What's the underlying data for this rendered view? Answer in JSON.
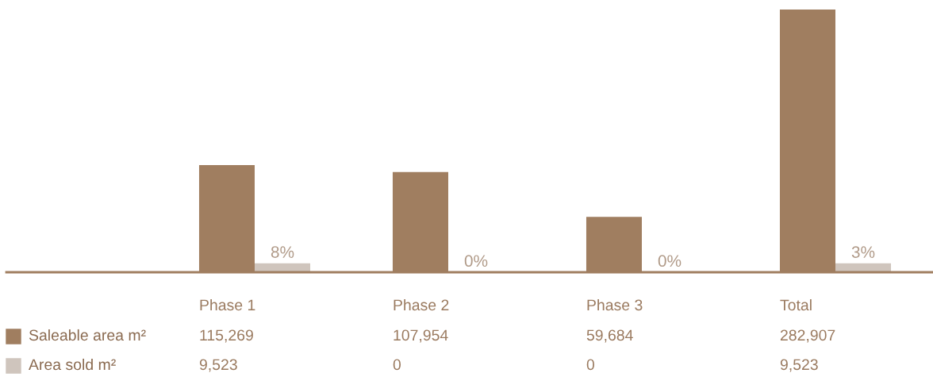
{
  "chart_data": {
    "type": "bar",
    "categories": [
      "Phase 1",
      "Phase 2",
      "Phase 3",
      "Total"
    ],
    "legend": "bottom left",
    "series": [
      {
        "name": "Saleable area m²",
        "color": "#a07e60",
        "values": [
          115269,
          107954,
          59684,
          282907
        ],
        "value_labels": [
          "115,269",
          "107,954",
          "59,684",
          "282,907"
        ]
      },
      {
        "name": "Area sold m²",
        "color": "#cfc5bd",
        "values": [
          9523,
          0,
          0,
          9523
        ],
        "value_labels": [
          "9,523",
          "0",
          "0",
          "9,523"
        ]
      }
    ],
    "annotations": [
      "8%",
      "0%",
      "0%",
      "3%"
    ]
  }
}
